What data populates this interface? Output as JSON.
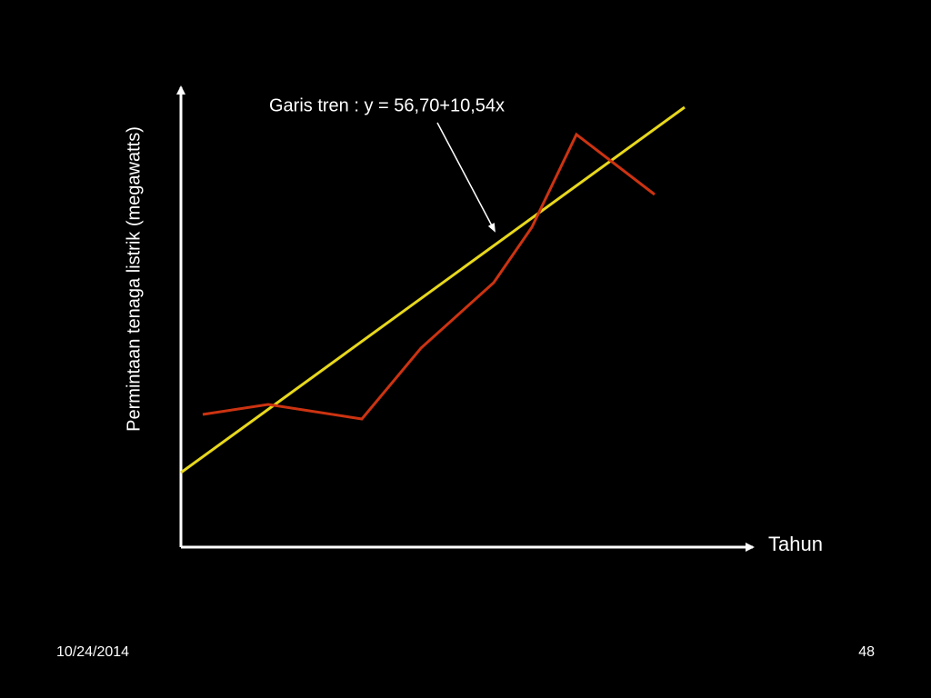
{
  "annotation": "Garis tren : y = 56,70+10,54x",
  "x_axis_label": "Tahun",
  "y_axis_label": "Permintaan tenaga listrik (megawatts)",
  "footer": {
    "date": "10/24/2014",
    "page": "48"
  }
}
